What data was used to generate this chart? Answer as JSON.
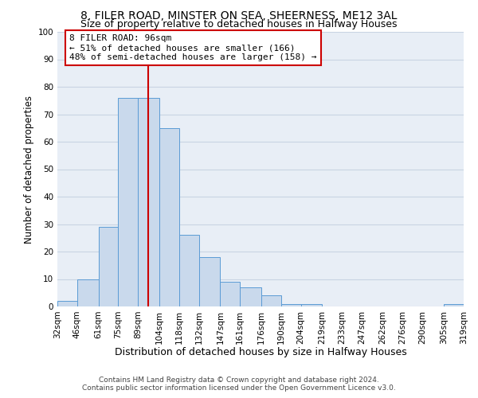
{
  "title": "8, FILER ROAD, MINSTER ON SEA, SHEERNESS, ME12 3AL",
  "subtitle": "Size of property relative to detached houses in Halfway Houses",
  "xlabel": "Distribution of detached houses by size in Halfway Houses",
  "ylabel": "Number of detached properties",
  "footer_line1": "Contains HM Land Registry data © Crown copyright and database right 2024.",
  "footer_line2": "Contains public sector information licensed under the Open Government Licence v3.0.",
  "bin_labels": [
    "32sqm",
    "46sqm",
    "61sqm",
    "75sqm",
    "89sqm",
    "104sqm",
    "118sqm",
    "132sqm",
    "147sqm",
    "161sqm",
    "176sqm",
    "190sqm",
    "204sqm",
    "219sqm",
    "233sqm",
    "247sqm",
    "262sqm",
    "276sqm",
    "290sqm",
    "305sqm",
    "319sqm"
  ],
  "bin_edges": [
    32,
    46,
    61,
    75,
    89,
    104,
    118,
    132,
    147,
    161,
    176,
    190,
    204,
    219,
    233,
    247,
    262,
    276,
    290,
    305,
    319
  ],
  "bar_heights": [
    2,
    10,
    29,
    76,
    76,
    65,
    26,
    18,
    9,
    7,
    4,
    1,
    1,
    0,
    0,
    0,
    0,
    0,
    0,
    1
  ],
  "bar_color": "#c9d9ec",
  "bar_edge_color": "#5b9bd5",
  "vline_x": 96,
  "vline_color": "#cc0000",
  "annotation_line1": "8 FILER ROAD: 96sqm",
  "annotation_line2": "← 51% of detached houses are smaller (166)",
  "annotation_line3": "48% of semi-detached houses are larger (158) →",
  "annotation_box_color": "#cc0000",
  "ylim": [
    0,
    100
  ],
  "yticks": [
    0,
    10,
    20,
    30,
    40,
    50,
    60,
    70,
    80,
    90,
    100
  ],
  "grid_color": "#c8d4e3",
  "background_color": "#e8eef6",
  "title_fontsize": 10,
  "subtitle_fontsize": 9,
  "xlabel_fontsize": 9,
  "ylabel_fontsize": 8.5,
  "tick_fontsize": 7.5,
  "annotation_fontsize": 8,
  "footer_fontsize": 6.5
}
